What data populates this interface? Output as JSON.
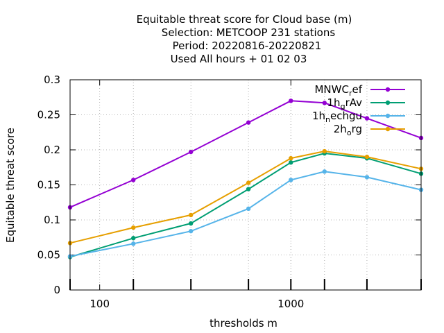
{
  "chart_data": {
    "type": "line",
    "title_lines": [
      "Equitable threat score  for Cloud base (m)",
      "Selection: METCOOP    231 stations",
      "Period: 20220816-20220821",
      "Used  All hours  + 01 02 03"
    ],
    "xlabel": "thresholds m",
    "ylabel": "Equitable threat score",
    "x_scale": "log",
    "xlim": [
      70,
      4800
    ],
    "ylim": [
      0,
      0.3
    ],
    "x_ticks": [
      100,
      1000
    ],
    "x_tick_labels": [
      "100",
      "1000"
    ],
    "y_ticks": [
      0,
      0.05,
      0.1,
      0.15,
      0.2,
      0.25,
      0.3
    ],
    "y_tick_labels": [
      "0",
      "0.05",
      "0.1",
      "0.15",
      "0.2",
      "0.25",
      "0.3"
    ],
    "grid": true,
    "legend_position": "top-right",
    "x": [
      70,
      150,
      300,
      600,
      1000,
      1500,
      2500,
      4800
    ],
    "series": [
      {
        "name": "MNWC_ref",
        "color": "#9400d3",
        "marker": "filled-circle",
        "values": [
          0.118,
          0.157,
          0.197,
          0.239,
          0.27,
          0.267,
          0.245,
          0.217
        ]
      },
      {
        "name": "1h_grAv",
        "color": "#009e73",
        "marker": "filled-circle",
        "values": [
          0.047,
          0.074,
          0.095,
          0.144,
          0.182,
          0.195,
          0.188,
          0.166
        ]
      },
      {
        "name": "1h_nechgu",
        "color": "#56b4e9",
        "marker": "filled-circle",
        "values": [
          0.048,
          0.066,
          0.084,
          0.116,
          0.157,
          0.169,
          0.161,
          0.143
        ]
      },
      {
        "name": "2h_org",
        "color": "#e69f00",
        "marker": "filled-circle",
        "values": [
          0.067,
          0.089,
          0.107,
          0.153,
          0.188,
          0.198,
          0.19,
          0.173
        ]
      }
    ]
  }
}
